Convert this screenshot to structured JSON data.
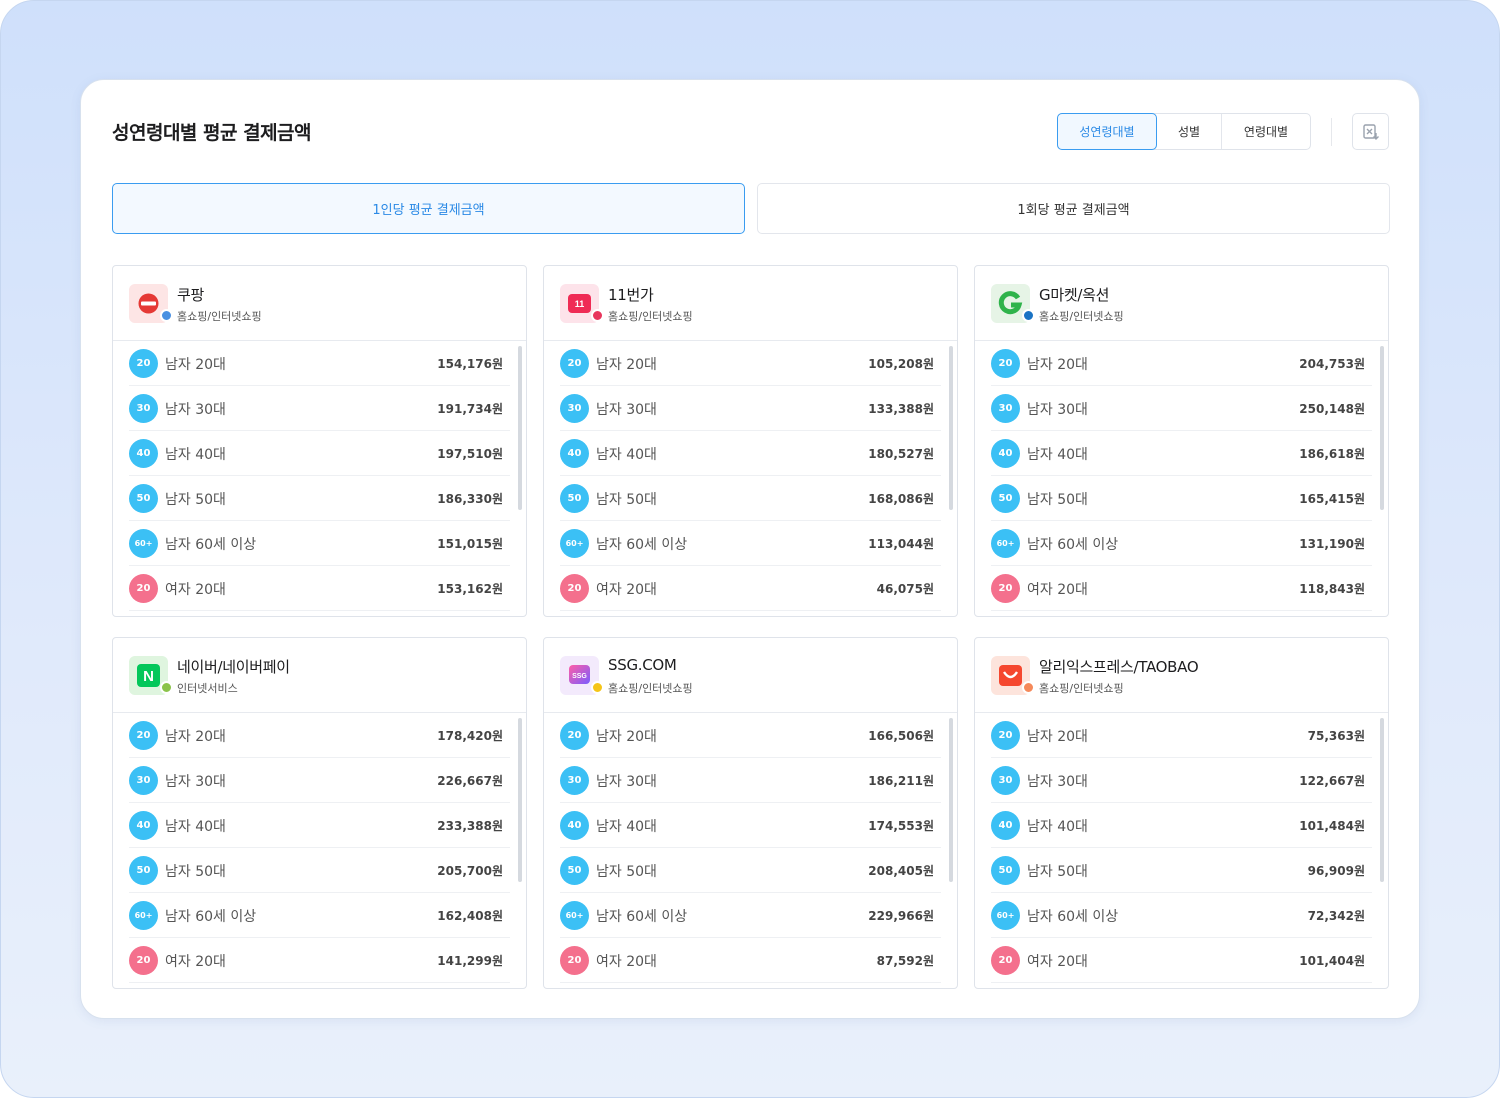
{
  "header": {
    "title": "성연령대별 평균 결제금액",
    "segments": [
      "성연령대별",
      "성별",
      "연령대별"
    ],
    "active_segment": "성연령대별",
    "excel_icon": "excel-download-icon"
  },
  "tabs": [
    {
      "label": "1인당 평균 결제금액",
      "active": true
    },
    {
      "label": "1회당 평균 결제금액",
      "active": false
    }
  ],
  "cards": [
    {
      "name": "쿠팡",
      "category": "홈쇼핑/인터넷쇼핑",
      "dot_color": "#4a90e2",
      "logo": "coupang-logo",
      "rows": [
        {
          "badge": "20",
          "gender": "m",
          "label": "남자 20대",
          "value": "154,176원"
        },
        {
          "badge": "30",
          "gender": "m",
          "label": "남자 30대",
          "value": "191,734원"
        },
        {
          "badge": "40",
          "gender": "m",
          "label": "남자 40대",
          "value": "197,510원"
        },
        {
          "badge": "50",
          "gender": "m",
          "label": "남자 50대",
          "value": "186,330원"
        },
        {
          "badge": "60+",
          "gender": "m",
          "label": "남자 60세 이상",
          "value": "151,015원"
        },
        {
          "badge": "20",
          "gender": "f",
          "label": "여자 20대",
          "value": "153,162원"
        }
      ]
    },
    {
      "name": "11번가",
      "category": "홈쇼핑/인터넷쇼핑",
      "dot_color": "#e8365d",
      "logo": "11st-logo",
      "rows": [
        {
          "badge": "20",
          "gender": "m",
          "label": "남자 20대",
          "value": "105,208원"
        },
        {
          "badge": "30",
          "gender": "m",
          "label": "남자 30대",
          "value": "133,388원"
        },
        {
          "badge": "40",
          "gender": "m",
          "label": "남자 40대",
          "value": "180,527원"
        },
        {
          "badge": "50",
          "gender": "m",
          "label": "남자 50대",
          "value": "168,086원"
        },
        {
          "badge": "60+",
          "gender": "m",
          "label": "남자 60세 이상",
          "value": "113,044원"
        },
        {
          "badge": "20",
          "gender": "f",
          "label": "여자 20대",
          "value": "46,075원"
        }
      ]
    },
    {
      "name": "G마켓/옥션",
      "category": "홈쇼핑/인터넷쇼핑",
      "dot_color": "#1a73c4",
      "logo": "gmarket-logo",
      "rows": [
        {
          "badge": "20",
          "gender": "m",
          "label": "남자 20대",
          "value": "204,753원"
        },
        {
          "badge": "30",
          "gender": "m",
          "label": "남자 30대",
          "value": "250,148원"
        },
        {
          "badge": "40",
          "gender": "m",
          "label": "남자 40대",
          "value": "186,618원"
        },
        {
          "badge": "50",
          "gender": "m",
          "label": "남자 50대",
          "value": "165,415원"
        },
        {
          "badge": "60+",
          "gender": "m",
          "label": "남자 60세 이상",
          "value": "131,190원"
        },
        {
          "badge": "20",
          "gender": "f",
          "label": "여자 20대",
          "value": "118,843원"
        }
      ]
    },
    {
      "name": "네이버/네이버페이",
      "category": "인터넷서비스",
      "dot_color": "#8bc34a",
      "logo": "naver-logo",
      "rows": [
        {
          "badge": "20",
          "gender": "m",
          "label": "남자 20대",
          "value": "178,420원"
        },
        {
          "badge": "30",
          "gender": "m",
          "label": "남자 30대",
          "value": "226,667원"
        },
        {
          "badge": "40",
          "gender": "m",
          "label": "남자 40대",
          "value": "233,388원"
        },
        {
          "badge": "50",
          "gender": "m",
          "label": "남자 50대",
          "value": "205,700원"
        },
        {
          "badge": "60+",
          "gender": "m",
          "label": "남자 60세 이상",
          "value": "162,408원"
        },
        {
          "badge": "20",
          "gender": "f",
          "label": "여자 20대",
          "value": "141,299원"
        }
      ]
    },
    {
      "name": "SSG.COM",
      "category": "홈쇼핑/인터넷쇼핑",
      "dot_color": "#f5c518",
      "logo": "ssg-logo",
      "rows": [
        {
          "badge": "20",
          "gender": "m",
          "label": "남자 20대",
          "value": "166,506원"
        },
        {
          "badge": "30",
          "gender": "m",
          "label": "남자 30대",
          "value": "186,211원"
        },
        {
          "badge": "40",
          "gender": "m",
          "label": "남자 40대",
          "value": "174,553원"
        },
        {
          "badge": "50",
          "gender": "m",
          "label": "남자 50대",
          "value": "208,405원"
        },
        {
          "badge": "60+",
          "gender": "m",
          "label": "남자 60세 이상",
          "value": "229,966원"
        },
        {
          "badge": "20",
          "gender": "f",
          "label": "여자 20대",
          "value": "87,592원"
        }
      ]
    },
    {
      "name": "알리익스프레스/TAOBAO",
      "category": "홈쇼핑/인터넷쇼핑",
      "dot_color": "#f5895a",
      "logo": "aliexpress-logo",
      "rows": [
        {
          "badge": "20",
          "gender": "m",
          "label": "남자 20대",
          "value": "75,363원"
        },
        {
          "badge": "30",
          "gender": "m",
          "label": "남자 30대",
          "value": "122,667원"
        },
        {
          "badge": "40",
          "gender": "m",
          "label": "남자 40대",
          "value": "101,484원"
        },
        {
          "badge": "50",
          "gender": "m",
          "label": "남자 50대",
          "value": "96,909원"
        },
        {
          "badge": "60+",
          "gender": "m",
          "label": "남자 60세 이상",
          "value": "72,342원"
        },
        {
          "badge": "20",
          "gender": "f",
          "label": "여자 20대",
          "value": "101,404원"
        }
      ]
    }
  ]
}
